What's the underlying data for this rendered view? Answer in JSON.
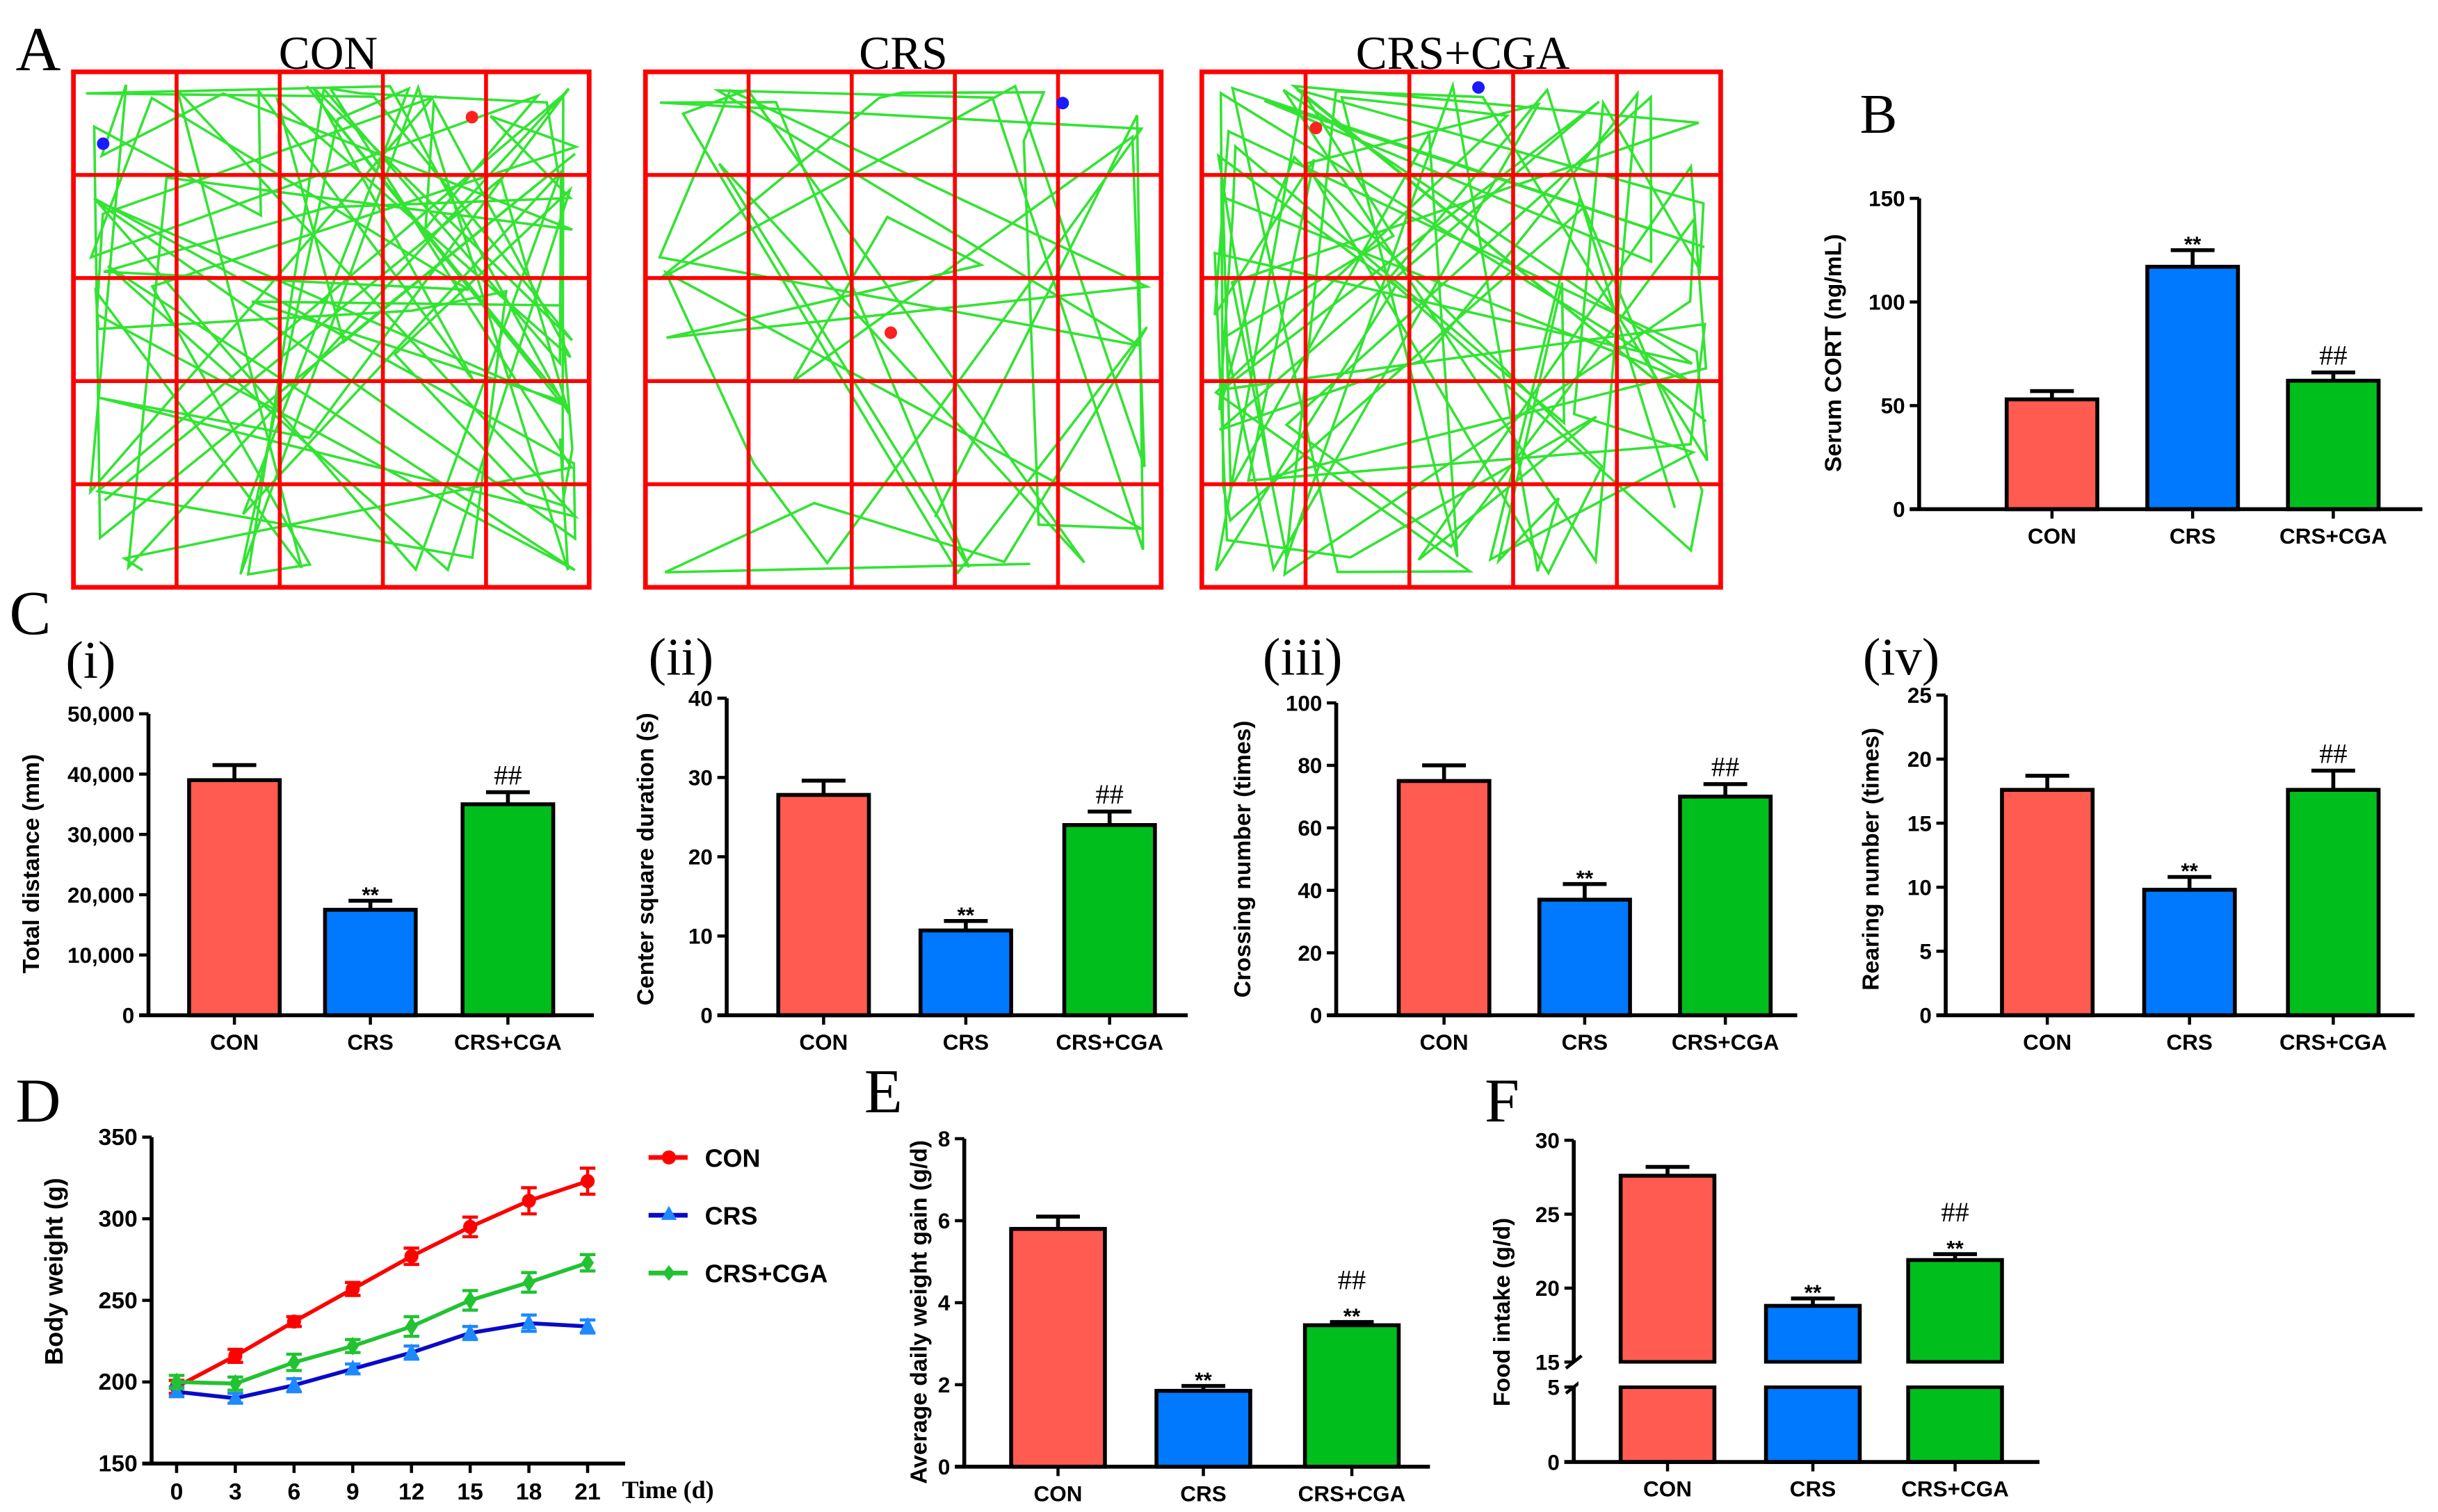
{
  "panel_labels": {
    "a": "A",
    "b": "B",
    "c": "C",
    "d": "D",
    "e": "E",
    "f": "F"
  },
  "colors": {
    "con": "#ff5b50",
    "crs": "#0079ff",
    "cga": "#00bf1d",
    "grid": "#ff0000",
    "track": "#33e333",
    "line_con": "#ff0000",
    "line_crs": "#0a0ac8",
    "line_cga": "#22c232"
  },
  "open_field": {
    "titles": [
      "CON",
      "CRS",
      "CRS+CGA"
    ]
  },
  "chart_data": [
    {
      "id": "B",
      "type": "bar",
      "ylabel": "Serum CORT  (ng/mL)",
      "categories": [
        "CON",
        "CRS",
        "CRS+CGA"
      ],
      "values": [
        53,
        117,
        62
      ],
      "errors": [
        4,
        8,
        4
      ],
      "annotations": [
        "",
        "**",
        "##"
      ],
      "ylim": [
        0,
        150
      ],
      "yticks": [
        "0",
        "50",
        "100",
        "150"
      ]
    },
    {
      "id": "C-i",
      "type": "bar",
      "sublabel": "(i)",
      "ylabel": "Total distance (mm)",
      "categories": [
        "CON",
        "CRS",
        "CRS+CGA"
      ],
      "values": [
        39000,
        17500,
        35000
      ],
      "errors": [
        2500,
        1500,
        2000
      ],
      "annotations": [
        "",
        "**",
        "##"
      ],
      "ylim": [
        0,
        50000
      ],
      "yticks": [
        "0",
        "10,000",
        "20,000",
        "30,000",
        "40,000",
        "50,000"
      ]
    },
    {
      "id": "C-ii",
      "type": "bar",
      "sublabel": "(ii)",
      "ylabel": "Center square duration (s)",
      "categories": [
        "CON",
        "CRS",
        "CRS+CGA"
      ],
      "values": [
        27.8,
        10.7,
        24
      ],
      "errors": [
        1.8,
        1.2,
        1.7
      ],
      "annotations": [
        "",
        "**",
        "##"
      ],
      "ylim": [
        0,
        40
      ],
      "yticks": [
        "0",
        "10",
        "20",
        "30",
        "40"
      ]
    },
    {
      "id": "C-iii",
      "type": "bar",
      "sublabel": "(iii)",
      "ylabel": "Crossing number (times)",
      "categories": [
        "CON",
        "CRS",
        "CRS+CGA"
      ],
      "values": [
        75,
        37,
        70
      ],
      "errors": [
        5,
        5,
        4
      ],
      "annotations": [
        "",
        "**",
        "##"
      ],
      "ylim": [
        0,
        100
      ],
      "yticks": [
        "0",
        "20",
        "40",
        "60",
        "80",
        "100"
      ]
    },
    {
      "id": "C-iv",
      "type": "bar",
      "sublabel": "(iv)",
      "ylabel": "Rearing number (times)",
      "categories": [
        "CON",
        "CRS",
        "CRS+CGA"
      ],
      "values": [
        17.6,
        9.8,
        17.6
      ],
      "errors": [
        1.1,
        1.0,
        1.5
      ],
      "annotations": [
        "",
        "**",
        "##"
      ],
      "ylim": [
        0,
        25
      ],
      "yticks": [
        "0",
        "5",
        "10",
        "15",
        "20",
        "25"
      ]
    },
    {
      "id": "D",
      "type": "line",
      "ylabel": "Body weight  (g)",
      "xlabel": "Time (d)",
      "x": [
        0,
        3,
        6,
        9,
        12,
        15,
        18,
        21
      ],
      "xticks": [
        "0",
        "3",
        "6",
        "9",
        "12",
        "15",
        "18",
        "21"
      ],
      "ylim": [
        150,
        350
      ],
      "yticks": [
        "150",
        "200",
        "250",
        "300",
        "350"
      ],
      "legend": "right",
      "series": [
        {
          "name": "CON",
          "values": [
            197,
            216,
            237,
            257,
            277,
            295,
            311,
            323
          ],
          "errors": [
            4,
            4,
            3,
            4,
            5,
            6,
            8,
            8
          ]
        },
        {
          "name": "CRS",
          "values": [
            194,
            190,
            198,
            208,
            218,
            230,
            236,
            234
          ],
          "errors": [
            3,
            3,
            4,
            3,
            4,
            4,
            5,
            4
          ]
        },
        {
          "name": "CRS+CGA",
          "values": [
            200,
            199,
            212,
            222,
            234,
            250,
            261,
            273
          ],
          "errors": [
            4,
            4,
            5,
            4,
            6,
            6,
            6,
            5
          ]
        }
      ]
    },
    {
      "id": "E",
      "type": "bar",
      "ylabel": "Average daily weight gain (g/d)",
      "categories": [
        "CON",
        "CRS",
        "CRS+CGA"
      ],
      "values": [
        5.8,
        1.85,
        3.45
      ],
      "errors": [
        0.3,
        0.12,
        0.08
      ],
      "annotations": [
        "",
        "**",
        "**|##"
      ],
      "ylim": [
        0,
        8
      ],
      "yticks": [
        "0",
        "2",
        "4",
        "6",
        "8"
      ]
    },
    {
      "id": "F",
      "type": "bar",
      "ylabel": "Food intake (g/d)",
      "categories": [
        "CON",
        "CRS",
        "CRS+CGA"
      ],
      "values": [
        27.6,
        18.8,
        21.9
      ],
      "errors": [
        0.6,
        0.5,
        0.4
      ],
      "annotations": [
        "",
        "**",
        "**|##"
      ],
      "ylim": [
        0,
        30
      ],
      "axis_break": [
        5,
        15
      ],
      "yticks": [
        "0",
        "5",
        "15",
        "20",
        "25",
        "30"
      ]
    }
  ]
}
